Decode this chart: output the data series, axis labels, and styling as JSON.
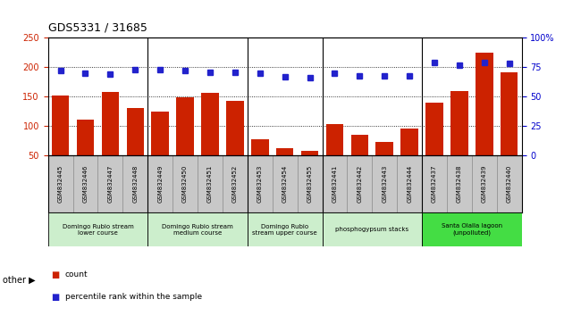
{
  "title": "GDS5331 / 31685",
  "samples": [
    "GSM832445",
    "GSM832446",
    "GSM832447",
    "GSM832448",
    "GSM832449",
    "GSM832450",
    "GSM832451",
    "GSM832452",
    "GSM832453",
    "GSM832454",
    "GSM832455",
    "GSM832441",
    "GSM832442",
    "GSM832443",
    "GSM832444",
    "GSM832437",
    "GSM832438",
    "GSM832439",
    "GSM832440"
  ],
  "counts": [
    152,
    111,
    158,
    131,
    125,
    149,
    157,
    142,
    77,
    62,
    57,
    103,
    85,
    73,
    95,
    140,
    160,
    225,
    192
  ],
  "percentiles": [
    72,
    70,
    69,
    73,
    73,
    72,
    71,
    71,
    70,
    67,
    66,
    70,
    68,
    68,
    68,
    79,
    77,
    79,
    78
  ],
  "groups": [
    {
      "label": "Domingo Rubio stream\nlower course",
      "start": 0,
      "end": 3,
      "color": "#cceecc"
    },
    {
      "label": "Domingo Rubio stream\nmedium course",
      "start": 4,
      "end": 7,
      "color": "#cceecc"
    },
    {
      "label": "Domingo Rubio\nstream upper course",
      "start": 8,
      "end": 10,
      "color": "#cceecc"
    },
    {
      "label": "phosphogypsum stacks",
      "start": 11,
      "end": 14,
      "color": "#cceecc"
    },
    {
      "label": "Santa Olalla lagoon\n(unpolluted)",
      "start": 15,
      "end": 18,
      "color": "#44dd44"
    }
  ],
  "bar_color": "#cc2200",
  "dot_color": "#2222cc",
  "ylim_left": [
    50,
    250
  ],
  "ylim_right": [
    0,
    100
  ],
  "left_ticks": [
    50,
    100,
    150,
    200,
    250
  ],
  "right_ticks": [
    0,
    25,
    50,
    75,
    100
  ],
  "left_tick_color": "#cc2200",
  "right_tick_color": "#0000cc",
  "grid_color": "black",
  "sample_bg_color": "#c8c8c8",
  "plot_bg_color": "#ffffff",
  "other_label": "other ▶"
}
